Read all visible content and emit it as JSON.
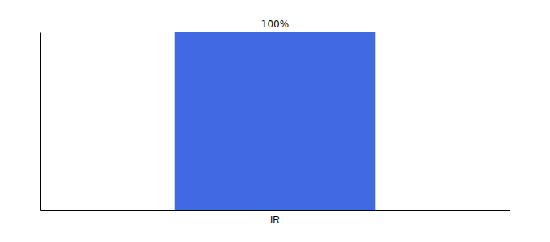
{
  "chart_data": {
    "type": "bar",
    "categories": [
      "IR"
    ],
    "values": [
      100
    ],
    "value_labels": [
      "100%"
    ],
    "color": "#4169e1",
    "ylim": [
      0,
      100
    ],
    "data_labels": true,
    "tick_labels": "x"
  }
}
